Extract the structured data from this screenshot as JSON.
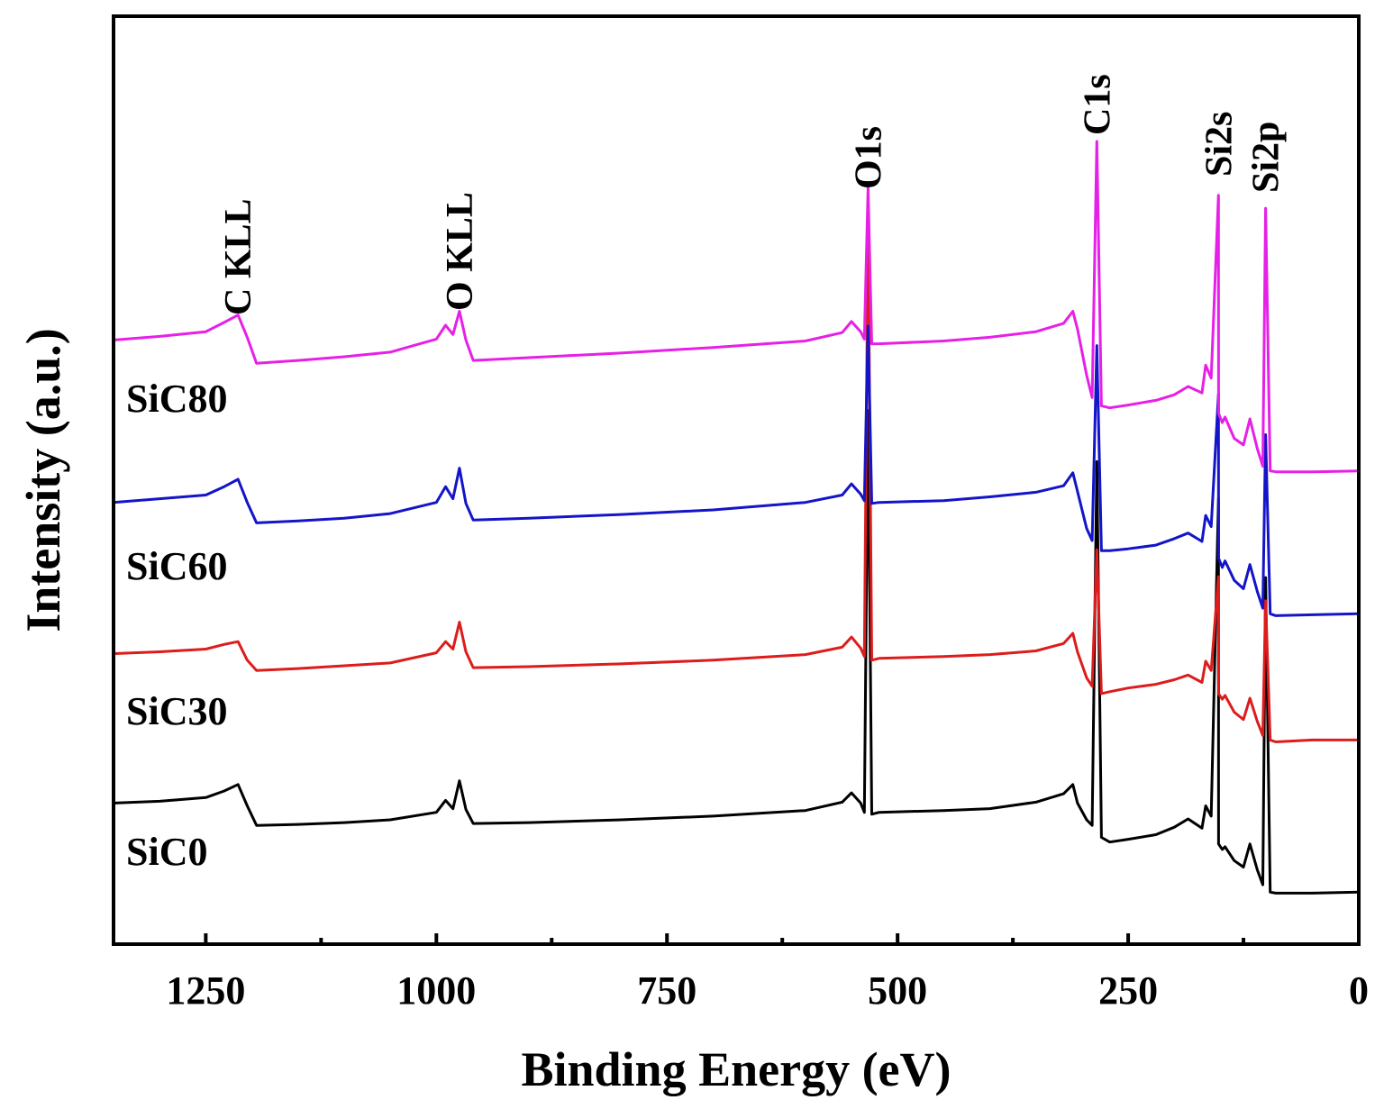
{
  "chart_data": {
    "type": "line",
    "xlabel": "Binding Energy (eV)",
    "ylabel": "Intensity (a.u.)",
    "x_reversed": true,
    "xlim": [
      1350,
      0
    ],
    "ylim": [
      0,
      100
    ],
    "xticks": [
      1250,
      1000,
      750,
      500,
      250,
      0
    ],
    "minor_xticks": [
      1125,
      875,
      625,
      375,
      125
    ],
    "y_ticks_shown": false,
    "peak_labels": [
      {
        "text": "C KLL",
        "x": 1215
      },
      {
        "text": "O KLL",
        "x": 975
      },
      {
        "text": "O1s",
        "x": 532
      },
      {
        "text": "C1s",
        "x": 284
      },
      {
        "text": "Si2s",
        "x": 152
      },
      {
        "text": "Si2p",
        "x": 101
      }
    ],
    "series": [
      {
        "name": "SiC0",
        "color": "#000000",
        "points": [
          [
            1350,
            15.2
          ],
          [
            1300,
            15.4
          ],
          [
            1250,
            15.8
          ],
          [
            1230,
            16.5
          ],
          [
            1215,
            17.2
          ],
          [
            1205,
            14.9
          ],
          [
            1195,
            12.8
          ],
          [
            1150,
            12.9
          ],
          [
            1100,
            13.1
          ],
          [
            1050,
            13.4
          ],
          [
            1000,
            14.2
          ],
          [
            990,
            15.5
          ],
          [
            982,
            14.6
          ],
          [
            975,
            17.6
          ],
          [
            968,
            14.5
          ],
          [
            960,
            13.0
          ],
          [
            900,
            13.1
          ],
          [
            800,
            13.4
          ],
          [
            700,
            13.8
          ],
          [
            600,
            14.4
          ],
          [
            560,
            15.3
          ],
          [
            550,
            16.3
          ],
          [
            540,
            15.2
          ],
          [
            536,
            14.2
          ],
          [
            532,
            57.5
          ],
          [
            528,
            14.0
          ],
          [
            520,
            14.2
          ],
          [
            450,
            14.4
          ],
          [
            400,
            14.6
          ],
          [
            350,
            15.3
          ],
          [
            320,
            16.2
          ],
          [
            310,
            17.2
          ],
          [
            305,
            15.2
          ],
          [
            295,
            13.4
          ],
          [
            289,
            12.8
          ],
          [
            284,
            52.0
          ],
          [
            279,
            11.5
          ],
          [
            270,
            11.0
          ],
          [
            250,
            11.3
          ],
          [
            220,
            11.8
          ],
          [
            200,
            12.6
          ],
          [
            185,
            13.5
          ],
          [
            170,
            12.5
          ],
          [
            166,
            14.9
          ],
          [
            160,
            13.8
          ],
          [
            152,
            10.8
          ],
          [
            148,
            10.2
          ],
          [
            152.1,
            48.0
          ],
          [
            145,
            10.5
          ],
          [
            135,
            9.0
          ],
          [
            125,
            8.3
          ],
          [
            118,
            10.8
          ],
          [
            110,
            8.0
          ],
          [
            104,
            6.4
          ],
          [
            101,
            39.5
          ],
          [
            96,
            5.6
          ],
          [
            90,
            5.5
          ],
          [
            50,
            5.5
          ],
          [
            0,
            5.6
          ]
        ]
      },
      {
        "name": "SiC30",
        "color": "#dd1c1c",
        "points": [
          [
            1350,
            31.3
          ],
          [
            1300,
            31.5
          ],
          [
            1250,
            31.8
          ],
          [
            1230,
            32.3
          ],
          [
            1215,
            32.6
          ],
          [
            1205,
            30.6
          ],
          [
            1195,
            29.5
          ],
          [
            1150,
            29.7
          ],
          [
            1100,
            30.0
          ],
          [
            1050,
            30.3
          ],
          [
            1000,
            31.4
          ],
          [
            990,
            32.6
          ],
          [
            982,
            31.8
          ],
          [
            975,
            34.7
          ],
          [
            968,
            31.5
          ],
          [
            960,
            29.8
          ],
          [
            900,
            29.9
          ],
          [
            800,
            30.2
          ],
          [
            700,
            30.6
          ],
          [
            600,
            31.2
          ],
          [
            560,
            32.0
          ],
          [
            550,
            33.1
          ],
          [
            540,
            31.9
          ],
          [
            536,
            31.0
          ],
          [
            532,
            78.0
          ],
          [
            528,
            30.6
          ],
          [
            520,
            30.8
          ],
          [
            450,
            31.0
          ],
          [
            400,
            31.2
          ],
          [
            350,
            31.6
          ],
          [
            320,
            32.4
          ],
          [
            310,
            33.5
          ],
          [
            305,
            31.5
          ],
          [
            295,
            28.7
          ],
          [
            289,
            27.8
          ],
          [
            284,
            42.5
          ],
          [
            279,
            27.0
          ],
          [
            270,
            27.2
          ],
          [
            250,
            27.6
          ],
          [
            220,
            28.0
          ],
          [
            200,
            28.5
          ],
          [
            185,
            29.0
          ],
          [
            170,
            28.2
          ],
          [
            166,
            30.5
          ],
          [
            160,
            29.5
          ],
          [
            152,
            27.0
          ],
          [
            148,
            26.4
          ],
          [
            152.1,
            39.6
          ],
          [
            145,
            26.8
          ],
          [
            135,
            25.0
          ],
          [
            125,
            24.2
          ],
          [
            118,
            26.5
          ],
          [
            110,
            24.0
          ],
          [
            104,
            22.5
          ],
          [
            101,
            37.0
          ],
          [
            96,
            22.0
          ],
          [
            90,
            21.8
          ],
          [
            50,
            22.0
          ],
          [
            0,
            22.0
          ]
        ]
      },
      {
        "name": "SiC60",
        "color": "#1414c8",
        "points": [
          [
            1350,
            47.6
          ],
          [
            1300,
            48.0
          ],
          [
            1250,
            48.4
          ],
          [
            1230,
            49.3
          ],
          [
            1215,
            50.1
          ],
          [
            1205,
            47.6
          ],
          [
            1195,
            45.4
          ],
          [
            1150,
            45.6
          ],
          [
            1100,
            45.9
          ],
          [
            1050,
            46.4
          ],
          [
            1000,
            47.6
          ],
          [
            990,
            49.3
          ],
          [
            982,
            48.0
          ],
          [
            975,
            51.3
          ],
          [
            968,
            47.5
          ],
          [
            960,
            45.7
          ],
          [
            900,
            45.9
          ],
          [
            800,
            46.3
          ],
          [
            700,
            46.8
          ],
          [
            600,
            47.6
          ],
          [
            560,
            48.4
          ],
          [
            550,
            49.6
          ],
          [
            540,
            48.5
          ],
          [
            536,
            47.8
          ],
          [
            532,
            66.6
          ],
          [
            528,
            47.5
          ],
          [
            520,
            47.6
          ],
          [
            450,
            47.8
          ],
          [
            400,
            48.2
          ],
          [
            350,
            48.7
          ],
          [
            320,
            49.4
          ],
          [
            310,
            50.8
          ],
          [
            305,
            48.8
          ],
          [
            295,
            44.8
          ],
          [
            289,
            43.5
          ],
          [
            284,
            64.5
          ],
          [
            279,
            42.4
          ],
          [
            270,
            42.4
          ],
          [
            250,
            42.6
          ],
          [
            220,
            43.0
          ],
          [
            200,
            43.7
          ],
          [
            185,
            44.3
          ],
          [
            170,
            43.4
          ],
          [
            166,
            46.2
          ],
          [
            160,
            45.0
          ],
          [
            152,
            41.6
          ],
          [
            148,
            40.6
          ],
          [
            152.1,
            59.3
          ],
          [
            145,
            41.3
          ],
          [
            135,
            39.2
          ],
          [
            125,
            38.3
          ],
          [
            118,
            40.9
          ],
          [
            110,
            38.0
          ],
          [
            104,
            36.2
          ],
          [
            101,
            54.9
          ],
          [
            96,
            35.6
          ],
          [
            90,
            35.4
          ],
          [
            50,
            35.5
          ],
          [
            0,
            35.6
          ]
        ]
      },
      {
        "name": "SiC80",
        "color": "#e620e6",
        "points": [
          [
            1350,
            65.1
          ],
          [
            1300,
            65.5
          ],
          [
            1250,
            66.0
          ],
          [
            1230,
            67.0
          ],
          [
            1215,
            67.8
          ],
          [
            1205,
            65.4
          ],
          [
            1195,
            62.6
          ],
          [
            1150,
            62.9
          ],
          [
            1100,
            63.3
          ],
          [
            1050,
            63.8
          ],
          [
            1000,
            65.2
          ],
          [
            990,
            66.7
          ],
          [
            982,
            65.7
          ],
          [
            975,
            68.2
          ],
          [
            968,
            65.1
          ],
          [
            960,
            62.9
          ],
          [
            900,
            63.2
          ],
          [
            800,
            63.7
          ],
          [
            700,
            64.3
          ],
          [
            600,
            65.0
          ],
          [
            560,
            65.9
          ],
          [
            550,
            67.1
          ],
          [
            540,
            66.0
          ],
          [
            536,
            65.2
          ],
          [
            532,
            81.5
          ],
          [
            528,
            64.7
          ],
          [
            520,
            64.7
          ],
          [
            450,
            65.0
          ],
          [
            400,
            65.4
          ],
          [
            350,
            66.0
          ],
          [
            320,
            66.9
          ],
          [
            310,
            68.2
          ],
          [
            305,
            66.3
          ],
          [
            295,
            61.3
          ],
          [
            289,
            58.9
          ],
          [
            284,
            86.5
          ],
          [
            279,
            58.0
          ],
          [
            270,
            57.8
          ],
          [
            250,
            58.1
          ],
          [
            220,
            58.6
          ],
          [
            200,
            59.2
          ],
          [
            185,
            60.1
          ],
          [
            170,
            59.4
          ],
          [
            166,
            62.4
          ],
          [
            160,
            61.0
          ],
          [
            152,
            57.2
          ],
          [
            148,
            56.2
          ],
          [
            152.1,
            80.7
          ],
          [
            145,
            56.8
          ],
          [
            135,
            54.5
          ],
          [
            125,
            53.8
          ],
          [
            118,
            56.6
          ],
          [
            110,
            53.4
          ],
          [
            104,
            51.5
          ],
          [
            101,
            79.3
          ],
          [
            96,
            51.0
          ],
          [
            90,
            50.9
          ],
          [
            50,
            50.9
          ],
          [
            0,
            51.0
          ]
        ]
      }
    ]
  }
}
